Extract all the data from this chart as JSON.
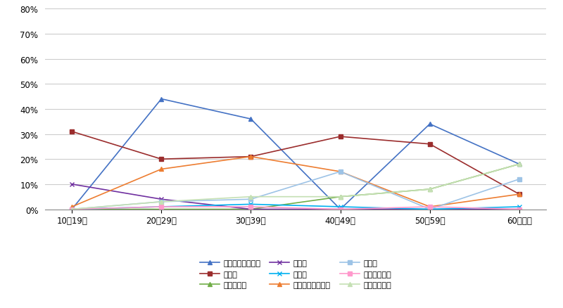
{
  "categories": [
    "10～19歳",
    "20～29歳",
    "30～39歳",
    "40～49歳",
    "50～59歳",
    "60歳以上"
  ],
  "series": [
    {
      "label": "就職・転職・転業",
      "values": [
        0,
        44,
        36,
        0,
        34,
        18
      ],
      "color": "#4472C4",
      "marker": "^",
      "linestyle": "-"
    },
    {
      "label": "転　動",
      "values": [
        31,
        20,
        21,
        29,
        26,
        6
      ],
      "color": "#9B2D2D",
      "marker": "s",
      "linestyle": "-"
    },
    {
      "label": "退職・廃業",
      "values": [
        0,
        0,
        0,
        5,
        8,
        18
      ],
      "color": "#70AD47",
      "marker": "^",
      "linestyle": "-"
    },
    {
      "label": "就　学",
      "values": [
        10,
        4,
        0,
        0,
        0,
        0
      ],
      "color": "#7030A0",
      "marker": "x",
      "linestyle": "-"
    },
    {
      "label": "卒　業",
      "values": [
        0,
        1,
        2,
        1,
        0,
        1
      ],
      "color": "#00B0F0",
      "marker": "x",
      "linestyle": "-"
    },
    {
      "label": "結婚・離婚・縁組",
      "values": [
        1,
        16,
        21,
        15,
        1,
        6
      ],
      "color": "#ED7D31",
      "marker": "^",
      "linestyle": "-"
    },
    {
      "label": "住　宅",
      "values": [
        0,
        3,
        4,
        15,
        0,
        12
      ],
      "color": "#9DC3E6",
      "marker": "s",
      "linestyle": "-"
    },
    {
      "label": "交通の利便性",
      "values": [
        0,
        1,
        1,
        0,
        1,
        0
      ],
      "color": "#FF99CC",
      "marker": "s",
      "linestyle": "-"
    },
    {
      "label": "生活の利便性",
      "values": [
        0,
        3,
        5,
        5,
        8,
        18
      ],
      "color": "#C5E0B4",
      "marker": "^",
      "linestyle": "-"
    }
  ],
  "ylim": [
    0,
    80
  ],
  "yticks": [
    0,
    10,
    20,
    30,
    40,
    50,
    60,
    70,
    80
  ],
  "ytick_labels": [
    "0%",
    "10%",
    "20%",
    "30%",
    "40%",
    "50%",
    "60%",
    "70%",
    "80%"
  ],
  "grid_color": "#CCCCCC",
  "bg_color": "#FFFFFF",
  "legend_ncol": 3,
  "figsize": [
    8.0,
    4.39
  ],
  "dpi": 100
}
